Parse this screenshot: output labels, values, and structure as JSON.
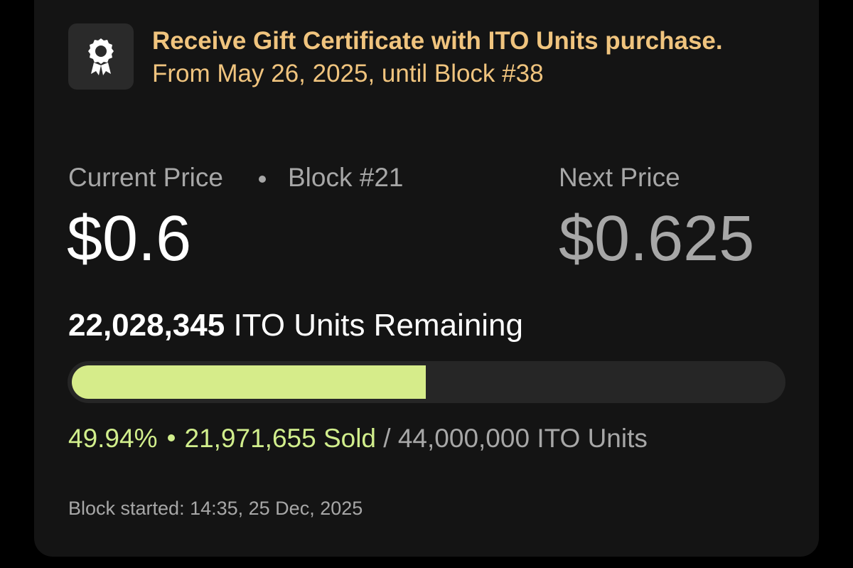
{
  "promo": {
    "icon": "award-ribbon-icon",
    "title": "Receive Gift Certificate with ITO Units purchase.",
    "subtitle": "From May 26, 2025, until Block #38"
  },
  "current": {
    "label": "Current Price",
    "block": "Block #21",
    "price": "$0.6"
  },
  "next": {
    "label": "Next Price",
    "price": "$0.625"
  },
  "remaining": {
    "count": "22,028,345",
    "suffix": " ITO Units Remaining"
  },
  "progress": {
    "fraction_sold": 0.4994,
    "percent_text": "49.94%",
    "sold_text": "21,971,655 Sold",
    "separator": " / ",
    "total_text": "44,000,000 ITO Units"
  },
  "block_started": "Block started: 14:35, 25 Dec, 2025",
  "colors": {
    "accent_gold": "#f0c47e",
    "progress_green": "#d6ec8a",
    "card_bg": "#141414"
  }
}
